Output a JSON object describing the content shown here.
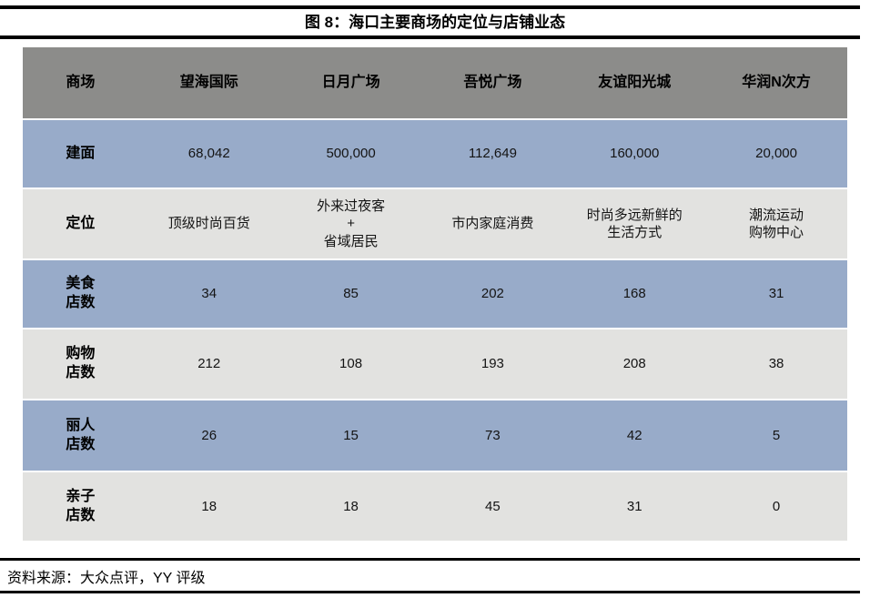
{
  "title": "图 8：海口主要商场的定位与店铺业态",
  "source": "资料来源：大众点评，YY 评级",
  "colors": {
    "header_bg": "#8c8c8a",
    "blue_row_bg": "#98abc9",
    "gray_row_bg": "#e2e2e0",
    "rule": "#000000"
  },
  "table": {
    "header": [
      "商场",
      "望海国际",
      "日月广场",
      "吾悦广场",
      "友谊阳光城",
      "华润N次方"
    ],
    "rows": [
      {
        "label": "建面",
        "cells": [
          "68,042",
          "500,000",
          "112,649",
          "160,000",
          "20,000"
        ]
      },
      {
        "label": "定位",
        "cells": [
          "顶级时尚百货",
          "外来过夜客\n+\n省域居民",
          "市内家庭消费",
          "时尚多远新鲜的\n生活方式",
          "潮流运动\n购物中心"
        ]
      },
      {
        "label": "美食\n店数",
        "cells": [
          "34",
          "85",
          "202",
          "168",
          "31"
        ]
      },
      {
        "label": "购物\n店数",
        "cells": [
          "212",
          "108",
          "193",
          "208",
          "38"
        ]
      },
      {
        "label": "丽人\n店数",
        "cells": [
          "26",
          "15",
          "73",
          "42",
          "5"
        ]
      },
      {
        "label": "亲子\n店数",
        "cells": [
          "18",
          "18",
          "45",
          "31",
          "0"
        ]
      }
    ]
  }
}
